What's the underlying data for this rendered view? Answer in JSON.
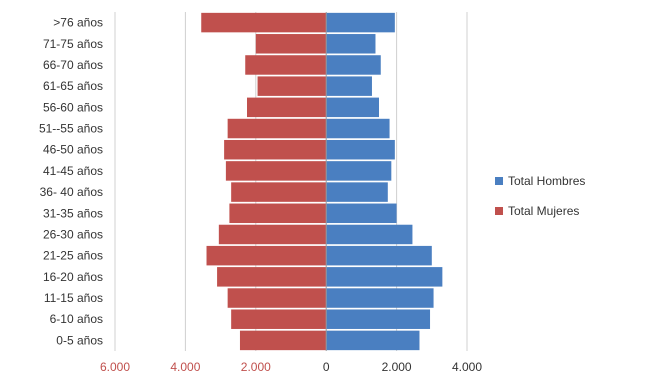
{
  "chart_data": {
    "type": "bar",
    "orientation": "horizontal",
    "layout": "population-pyramid",
    "categories": [
      "0-5 años",
      "6-10 años",
      "11-15 años",
      "16-20 años",
      "21-25 años",
      "26-30 años",
      "31-35 años",
      "36- 40 años",
      "41-45 años",
      "46-50 años",
      "51--55 años",
      "56-60 años",
      "61-65 años",
      "66-70 años",
      "71-75 años",
      ">76 años"
    ],
    "series": [
      {
        "name": "Total  Hombres",
        "color": "#4a7fc1",
        "side": "right",
        "values": [
          2650,
          2950,
          3050,
          3300,
          3000,
          2450,
          2000,
          1750,
          1850,
          1950,
          1800,
          1500,
          1300,
          1550,
          1400,
          1950
        ]
      },
      {
        "name": "Total Mujeres",
        "color": "#c0504d",
        "side": "left",
        "values": [
          2450,
          2700,
          2800,
          3100,
          3400,
          3050,
          2750,
          2700,
          2850,
          2900,
          2800,
          2250,
          1950,
          2300,
          2000,
          3550
        ]
      }
    ],
    "xlim": [
      -6000,
      4000
    ],
    "x_ticks": [
      {
        "value": -6000,
        "label": "6.000",
        "color": "#c0504d"
      },
      {
        "value": -4000,
        "label": "4.000",
        "color": "#c0504d"
      },
      {
        "value": -2000,
        "label": "2.000",
        "color": "#c0504d"
      },
      {
        "value": 0,
        "label": "0",
        "color": "#333333"
      },
      {
        "value": 2000,
        "label": "2.000",
        "color": "#333333"
      },
      {
        "value": 4000,
        "label": "4.000",
        "color": "#333333"
      }
    ],
    "grid": "vertical",
    "legend_position": "right",
    "title": "",
    "xlabel": "",
    "ylabel": ""
  }
}
